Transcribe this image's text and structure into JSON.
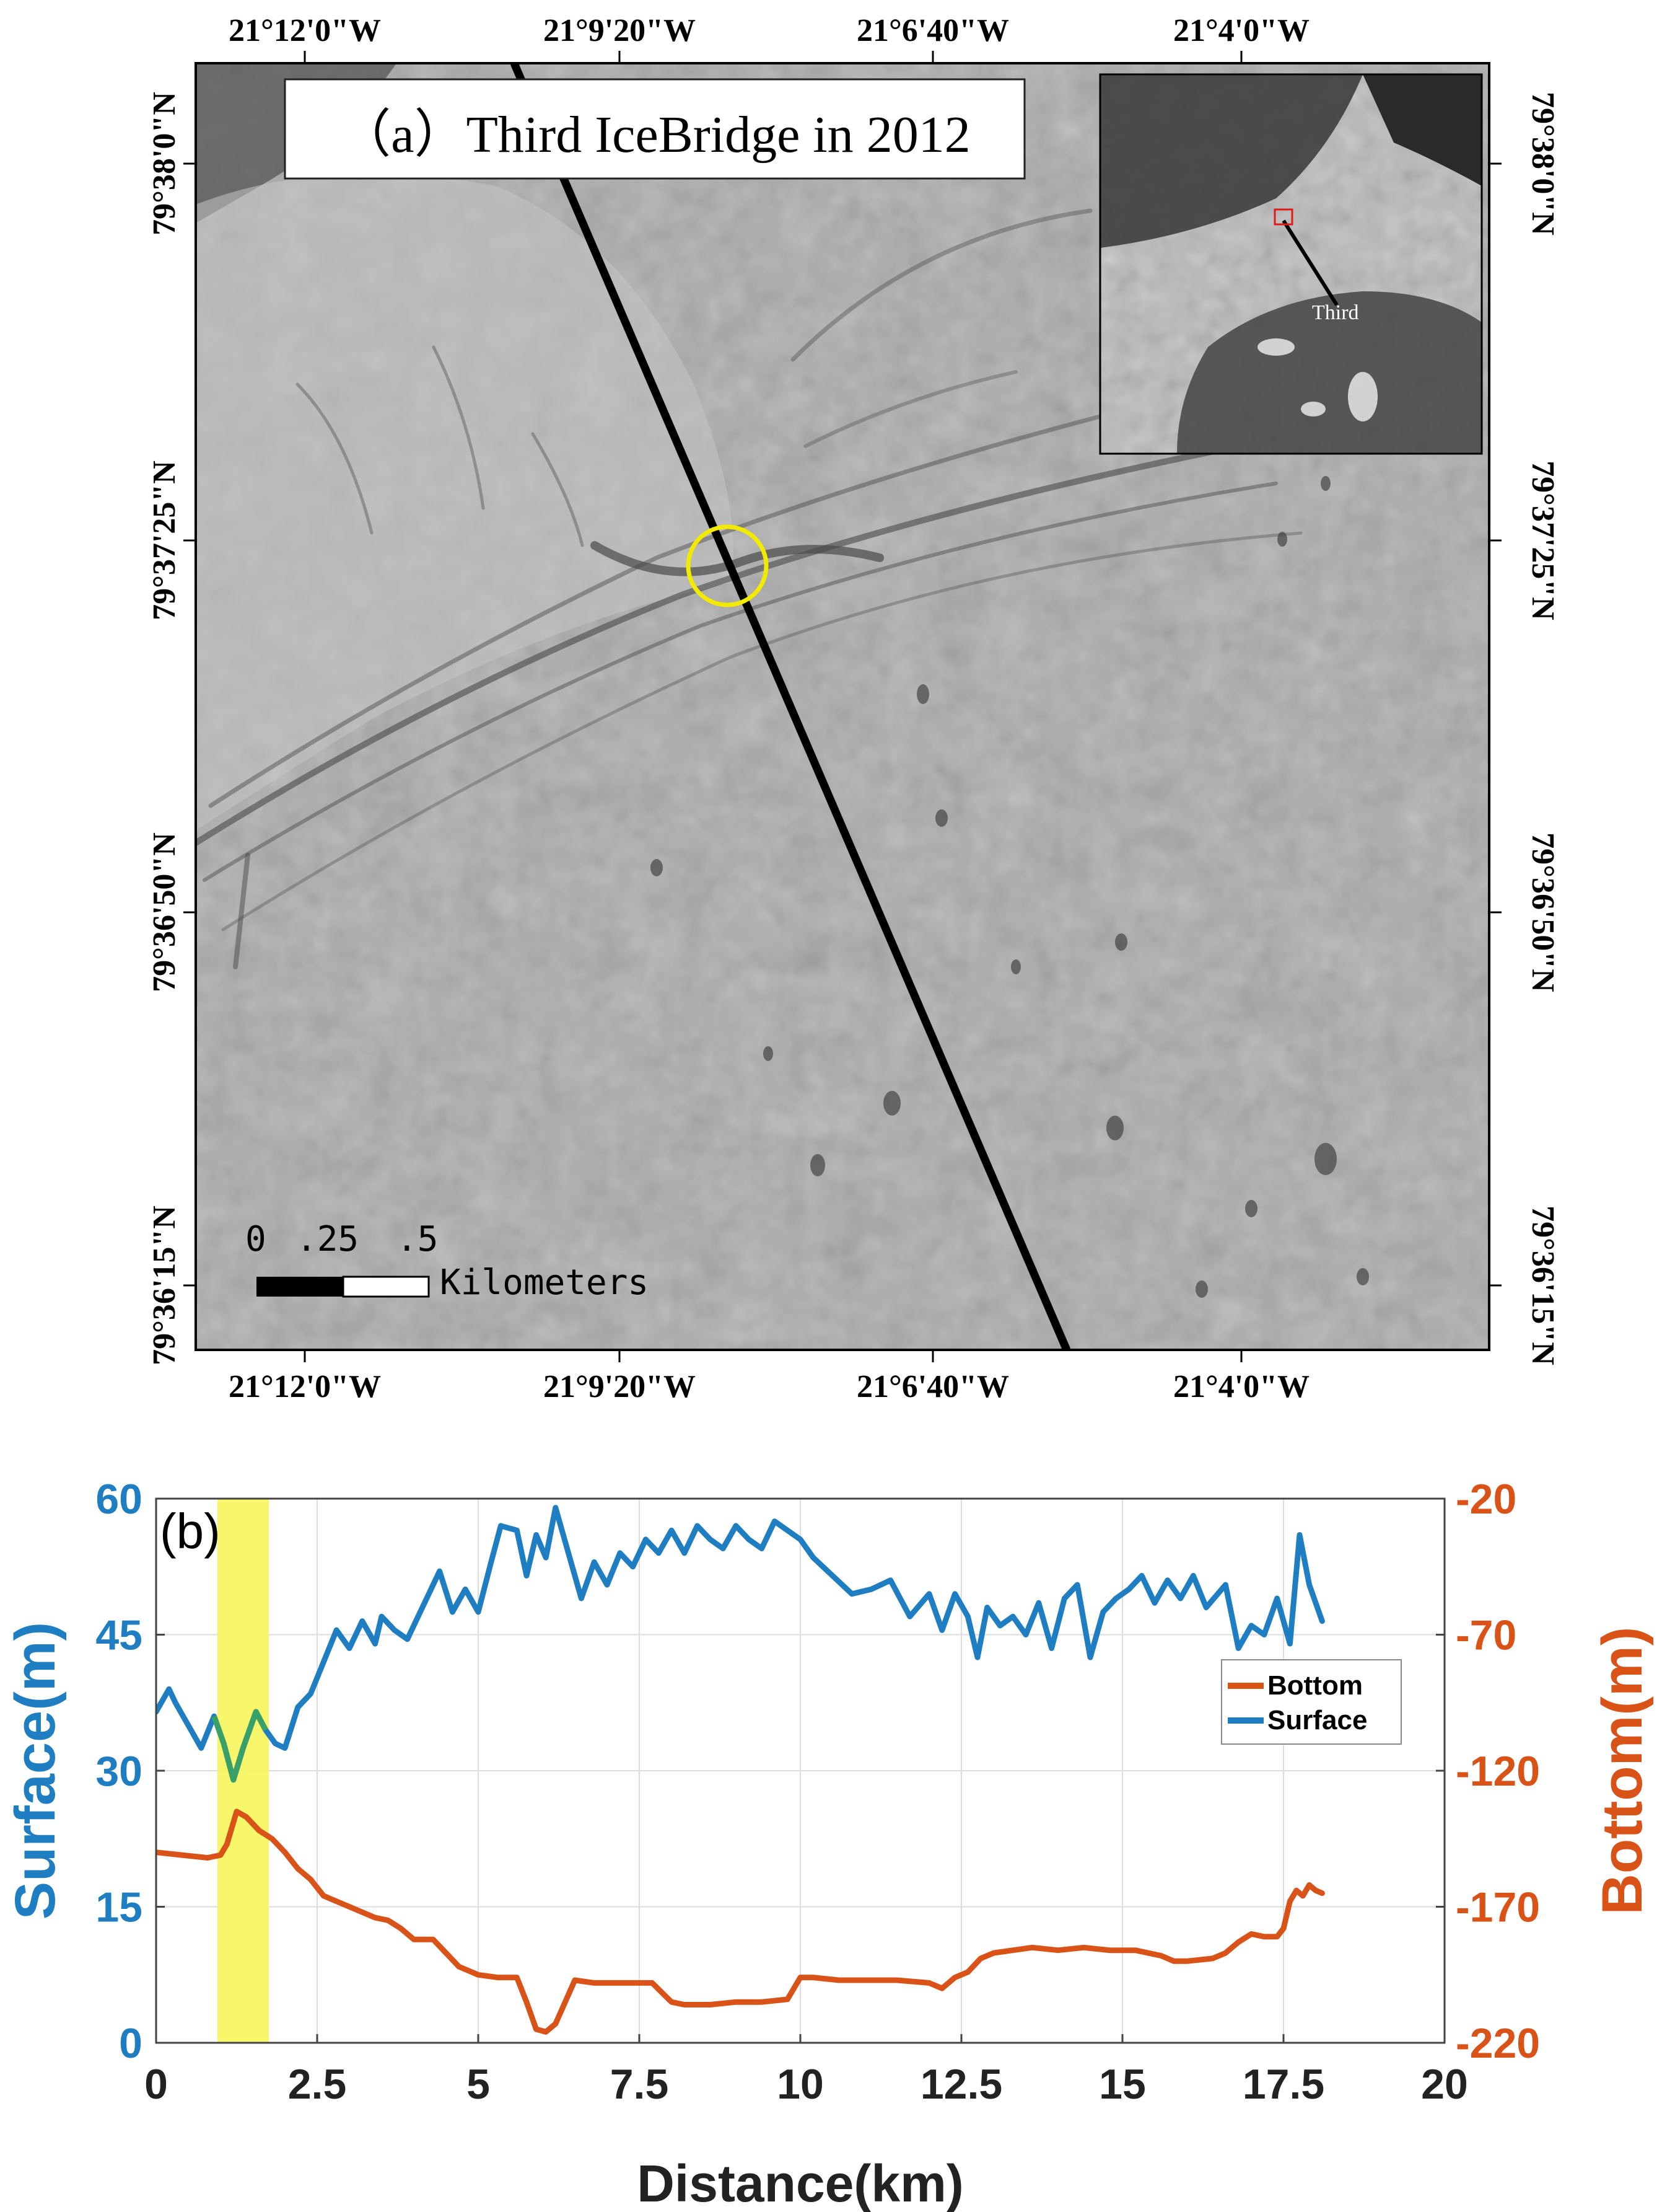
{
  "panel_a": {
    "title": "（a）Third IceBridge in 2012",
    "lon_ticks": [
      "21°12'0\"W",
      "21°9'20\"W",
      "21°6'40\"W",
      "21°4'0\"W"
    ],
    "lat_ticks": [
      "79°38'0\"N",
      "79°37'25\"N",
      "79°36'50\"N",
      "79°36'15\"N"
    ],
    "scalebar": {
      "ticks": [
        "0",
        ".25",
        ".5"
      ],
      "unit": "Kilometers"
    },
    "inset": {
      "label": "Third"
    },
    "colors": {
      "track": "#000000",
      "highlight_circle": "#f2ea00",
      "inset_box": "#e01a1a"
    }
  },
  "panel_b": {
    "tag": "(b)",
    "legend_bottom": "Bottom",
    "legend_surface": "Surface",
    "colors": {
      "surface": "#1f7ec2",
      "bottom": "#d95319",
      "highlight": "#f7f55a",
      "overlap": "#3aa06a"
    }
  },
  "chart_data": {
    "type": "line",
    "title": "",
    "xlabel": "Distance(km)",
    "ylabel": "Surface(m)",
    "ylabel_right": "Bottom(m)",
    "xlim": [
      0,
      20
    ],
    "ylim": [
      0,
      60
    ],
    "ylim_right": [
      -220,
      -20
    ],
    "x_ticks": [
      "0",
      "2.5",
      "5",
      "7.5",
      "10",
      "12.5",
      "15",
      "17.5",
      "20"
    ],
    "y_ticks": [
      "0",
      "15",
      "30",
      "45",
      "60"
    ],
    "y_ticks_right": [
      "-220",
      "-170",
      "-120",
      "-70",
      "-20"
    ],
    "grid": true,
    "legend_position": "right, middle",
    "highlight_x_range": [
      0.95,
      1.75
    ],
    "series": [
      {
        "name": "Surface",
        "axis": "left",
        "x": [
          0,
          0.2,
          0.3,
          0.5,
          0.7,
          0.9,
          1.05,
          1.2,
          1.35,
          1.55,
          1.7,
          1.85,
          2.0,
          2.2,
          2.4,
          2.6,
          2.8,
          3.0,
          3.2,
          3.4,
          3.5,
          3.7,
          3.9,
          4.2,
          4.4,
          4.6,
          4.8,
          5.0,
          5.2,
          5.35,
          5.6,
          5.75,
          5.9,
          6.05,
          6.2,
          6.4,
          6.6,
          6.8,
          7.0,
          7.2,
          7.4,
          7.6,
          7.8,
          8.0,
          8.2,
          8.4,
          8.6,
          8.8,
          9.0,
          9.2,
          9.4,
          9.6,
          9.8,
          10.0,
          10.2,
          10.5,
          10.8,
          11.1,
          11.4,
          11.7,
          12.0,
          12.2,
          12.4,
          12.6,
          12.75,
          12.9,
          13.1,
          13.3,
          13.5,
          13.7,
          13.9,
          14.1,
          14.3,
          14.5,
          14.7,
          14.9,
          15.1,
          15.3,
          15.5,
          15.7,
          15.9,
          16.1,
          16.3,
          16.6,
          16.8,
          17.0,
          17.2,
          17.4,
          17.6,
          17.75,
          17.9,
          18.1
        ],
        "values": [
          36.5,
          39,
          37.5,
          35,
          32.5,
          36,
          33,
          29,
          32.5,
          36.5,
          34.5,
          33,
          32.5,
          37,
          38.5,
          42,
          45.5,
          43.5,
          46.5,
          44,
          47,
          45.5,
          44.5,
          49,
          52,
          47.5,
          50,
          47.5,
          53,
          57,
          56.5,
          51.5,
          56,
          53.5,
          59,
          54,
          49,
          53,
          50.5,
          54,
          52.5,
          55.5,
          54,
          56.5,
          54,
          57,
          55.5,
          54.5,
          57,
          55.5,
          54.5,
          57.5,
          56.5,
          55.5,
          53.5,
          51.5,
          49.5,
          50,
          51,
          47,
          49.5,
          45.5,
          49.5,
          47,
          42.5,
          48,
          46,
          47,
          45,
          48.5,
          43.5,
          49,
          50.5,
          42.5,
          47.5,
          49,
          50,
          51.5,
          48.5,
          51,
          49,
          51.5,
          48,
          50.5,
          43.5,
          46,
          45,
          49,
          44,
          56,
          50.5,
          46.5
        ]
      },
      {
        "name": "Bottom",
        "axis": "right",
        "x": [
          0,
          0.4,
          0.8,
          1.0,
          1.1,
          1.25,
          1.4,
          1.6,
          1.8,
          2.0,
          2.2,
          2.4,
          2.6,
          2.9,
          3.1,
          3.4,
          3.6,
          3.8,
          4.0,
          4.3,
          4.5,
          4.7,
          5.0,
          5.3,
          5.6,
          5.75,
          5.9,
          6.05,
          6.2,
          6.5,
          6.8,
          7.2,
          7.7,
          8.0,
          8.2,
          8.6,
          9.0,
          9.4,
          9.8,
          10.0,
          10.2,
          10.6,
          11.0,
          11.5,
          12.0,
          12.2,
          12.4,
          12.6,
          12.8,
          13.0,
          13.3,
          13.6,
          14.0,
          14.4,
          14.8,
          15.2,
          15.6,
          15.8,
          16.0,
          16.4,
          16.6,
          16.8,
          17.0,
          17.2,
          17.4,
          17.5,
          17.6,
          17.7,
          17.8,
          17.9,
          18.0,
          18.1
        ],
        "values": [
          -150,
          -151,
          -152,
          -151,
          -147,
          -135,
          -137,
          -142,
          -145,
          -150,
          -156,
          -160,
          -166,
          -169,
          -171,
          -174,
          -175,
          -178,
          -182,
          -182,
          -187,
          -192,
          -195,
          -196,
          -196,
          -205,
          -215,
          -216,
          -213,
          -197,
          -198,
          -198,
          -198,
          -205,
          -206,
          -206,
          -205,
          -205,
          -204,
          -196,
          -196,
          -197,
          -197,
          -197,
          -198,
          -200,
          -196,
          -194,
          -189,
          -187,
          -186,
          -185,
          -186,
          -185,
          -186,
          -186,
          -188,
          -190,
          -190,
          -189,
          -187,
          -183,
          -180,
          -181,
          -181,
          -178,
          -168,
          -164,
          -166,
          -162,
          -164,
          -165
        ]
      }
    ]
  }
}
